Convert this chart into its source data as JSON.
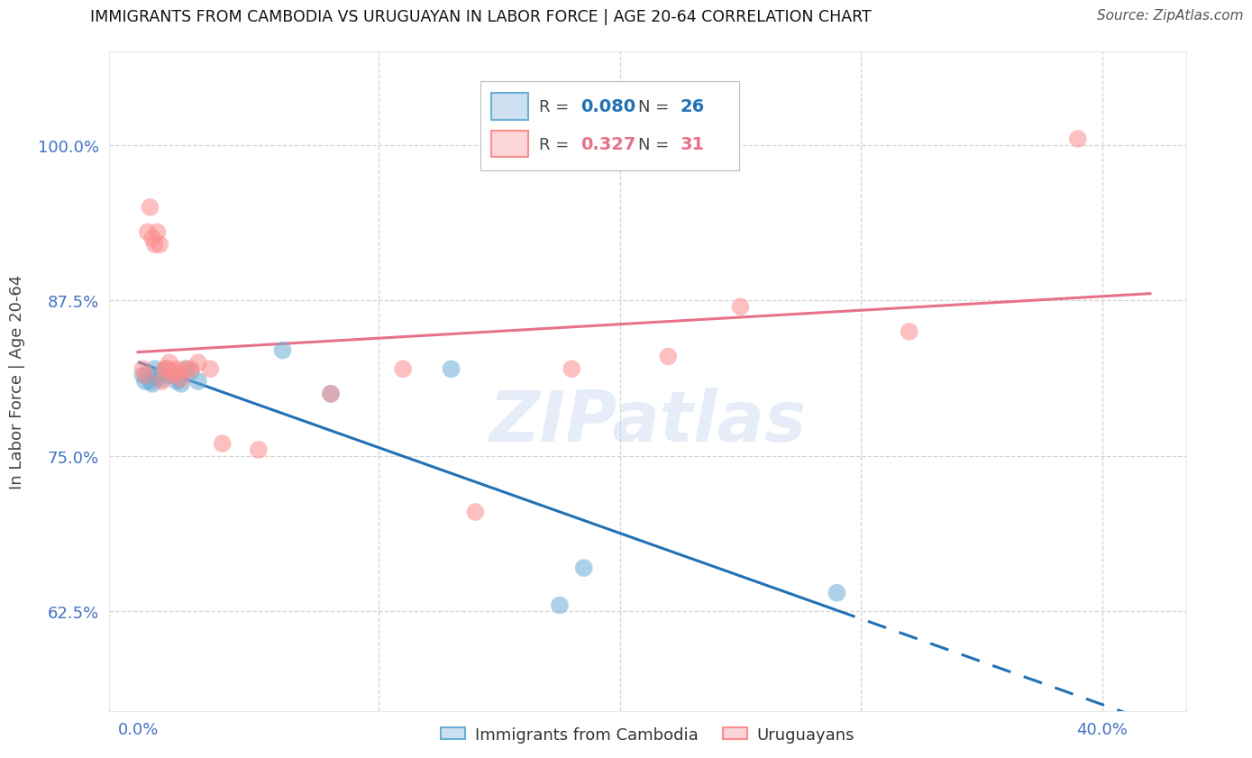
{
  "title": "IMMIGRANTS FROM CAMBODIA VS URUGUAYAN IN LABOR FORCE | AGE 20-64 CORRELATION CHART",
  "source": "Source: ZipAtlas.com",
  "xlabel_ticks_show": [
    "0.0%",
    "",
    "",
    "",
    "40.0%"
  ],
  "xlabel_tick_vals": [
    0.0,
    0.1,
    0.2,
    0.3,
    0.4
  ],
  "ylabel_ticks": [
    "62.5%",
    "75.0%",
    "87.5%",
    "100.0%"
  ],
  "ylabel_tick_vals": [
    0.625,
    0.75,
    0.875,
    1.0
  ],
  "xlim": [
    -0.012,
    0.435
  ],
  "ylim": [
    0.545,
    1.075
  ],
  "ylabel": "In Labor Force | Age 20-64",
  "watermark": "ZIPatlas",
  "cambodia_x": [
    0.002,
    0.003,
    0.004,
    0.005,
    0.006,
    0.007,
    0.008,
    0.009,
    0.01,
    0.011,
    0.012,
    0.013,
    0.014,
    0.015,
    0.016,
    0.017,
    0.018,
    0.02,
    0.022,
    0.025,
    0.06,
    0.08,
    0.13,
    0.175,
    0.29,
    0.185
  ],
  "cambodia_y": [
    0.815,
    0.81,
    0.815,
    0.81,
    0.808,
    0.82,
    0.813,
    0.815,
    0.812,
    0.818,
    0.82,
    0.815,
    0.817,
    0.816,
    0.81,
    0.812,
    0.808,
    0.82,
    0.818,
    0.81,
    0.835,
    0.8,
    0.82,
    0.63,
    0.64,
    0.66
  ],
  "uruguay_x": [
    0.002,
    0.003,
    0.004,
    0.005,
    0.006,
    0.007,
    0.008,
    0.009,
    0.01,
    0.011,
    0.012,
    0.013,
    0.014,
    0.015,
    0.016,
    0.017,
    0.018,
    0.02,
    0.022,
    0.025,
    0.03,
    0.035,
    0.05,
    0.08,
    0.11,
    0.14,
    0.18,
    0.22,
    0.25,
    0.32,
    0.39
  ],
  "uruguay_y": [
    0.82,
    0.815,
    0.93,
    0.95,
    0.925,
    0.92,
    0.93,
    0.92,
    0.81,
    0.82,
    0.82,
    0.825,
    0.818,
    0.815,
    0.82,
    0.818,
    0.812,
    0.82,
    0.82,
    0.825,
    0.82,
    0.76,
    0.755,
    0.8,
    0.82,
    0.705,
    0.82,
    0.83,
    0.87,
    0.85,
    1.005
  ],
  "cambodia_color": "#6baed6",
  "uruguay_color": "#fc8d8d",
  "cambodia_line_color": "#2171b5",
  "uruguay_line_color": "#e8718a",
  "R_cambodia": 0.08,
  "N_cambodia": 26,
  "R_uruguay": 0.327,
  "N_uruguay": 31,
  "legend_label_cambodia": "Immigrants from Cambodia",
  "legend_label_uruguay": "Uruguayans",
  "grid_color": "#c8c8c8",
  "bg_color": "#ffffff",
  "axis_color": "#4472c4",
  "title_color": "#111111",
  "source_color": "#555555"
}
